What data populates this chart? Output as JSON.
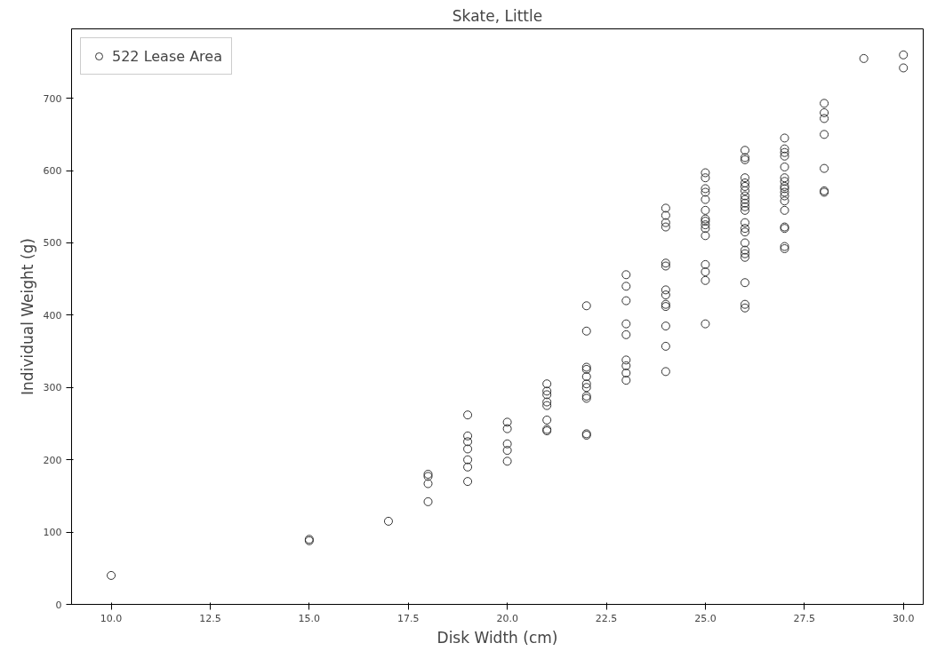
{
  "chart_data": {
    "type": "scatter",
    "title": "Skate, Little",
    "xlabel": "Disk Width (cm)",
    "ylabel": "Individual Weight (g)",
    "xlim": [
      9.0,
      30.5
    ],
    "ylim": [
      0,
      796
    ],
    "xticks": [
      {
        "value": 10,
        "label": "10.0"
      },
      {
        "value": 12.5,
        "label": "12.5"
      },
      {
        "value": 15,
        "label": "15.0"
      },
      {
        "value": 17.5,
        "label": "17.5"
      },
      {
        "value": 20,
        "label": "20.0"
      },
      {
        "value": 22.5,
        "label": "22.5"
      },
      {
        "value": 25,
        "label": "25.0"
      },
      {
        "value": 27.5,
        "label": "27.5"
      },
      {
        "value": 30,
        "label": "30.0"
      }
    ],
    "yticks": [
      0,
      100,
      200,
      300,
      400,
      500,
      600,
      700
    ],
    "grid": false,
    "legend": "top left",
    "marker": "circle",
    "series": [
      {
        "name": "522 Lease Area",
        "color": "#333333",
        "x": [
          10,
          15,
          15,
          17,
          18,
          18,
          18,
          18,
          19,
          19,
          19,
          19,
          19,
          19,
          19,
          20,
          20,
          20,
          20,
          20,
          21,
          21,
          21,
          21,
          21,
          21,
          21,
          21,
          22,
          22,
          22,
          22,
          22,
          22,
          22,
          22,
          22,
          22,
          22,
          23,
          23,
          23,
          23,
          23,
          23,
          23,
          23,
          23,
          24,
          24,
          24,
          24,
          24,
          24,
          24,
          24,
          24,
          24,
          24,
          24,
          24,
          25,
          25,
          25,
          25,
          25,
          25,
          25,
          25,
          25,
          25,
          25,
          25,
          25,
          25,
          25,
          26,
          26,
          26,
          26,
          26,
          26,
          26,
          26,
          26,
          26,
          26,
          26,
          26,
          26,
          26,
          26,
          26,
          26,
          26,
          26,
          26,
          26,
          27,
          27,
          27,
          27,
          27,
          27,
          27,
          27,
          27,
          27,
          27,
          27,
          27,
          27,
          27,
          27,
          27,
          28,
          28,
          28,
          28,
          28,
          28,
          28,
          29,
          30,
          30
        ],
        "values": [
          40,
          88,
          90,
          115,
          142,
          167,
          177,
          180,
          170,
          190,
          200,
          215,
          225,
          233,
          262,
          198,
          213,
          222,
          243,
          252,
          240,
          242,
          255,
          275,
          280,
          290,
          295,
          305,
          234,
          236,
          285,
          288,
          300,
          305,
          315,
          325,
          328,
          378,
          413,
          310,
          320,
          330,
          338,
          373,
          388,
          420,
          440,
          456,
          322,
          357,
          385,
          412,
          415,
          428,
          435,
          468,
          472,
          522,
          528,
          538,
          548,
          388,
          448,
          460,
          470,
          510,
          520,
          525,
          530,
          533,
          545,
          560,
          570,
          575,
          590,
          597,
          410,
          415,
          445,
          480,
          485,
          490,
          500,
          515,
          520,
          528,
          545,
          550,
          555,
          560,
          565,
          572,
          578,
          583,
          590,
          615,
          618,
          628,
          492,
          495,
          520,
          522,
          545,
          558,
          565,
          570,
          575,
          578,
          585,
          590,
          605,
          620,
          625,
          630,
          645,
          570,
          572,
          603,
          650,
          672,
          680,
          693,
          755,
          742,
          760
        ]
      }
    ]
  }
}
